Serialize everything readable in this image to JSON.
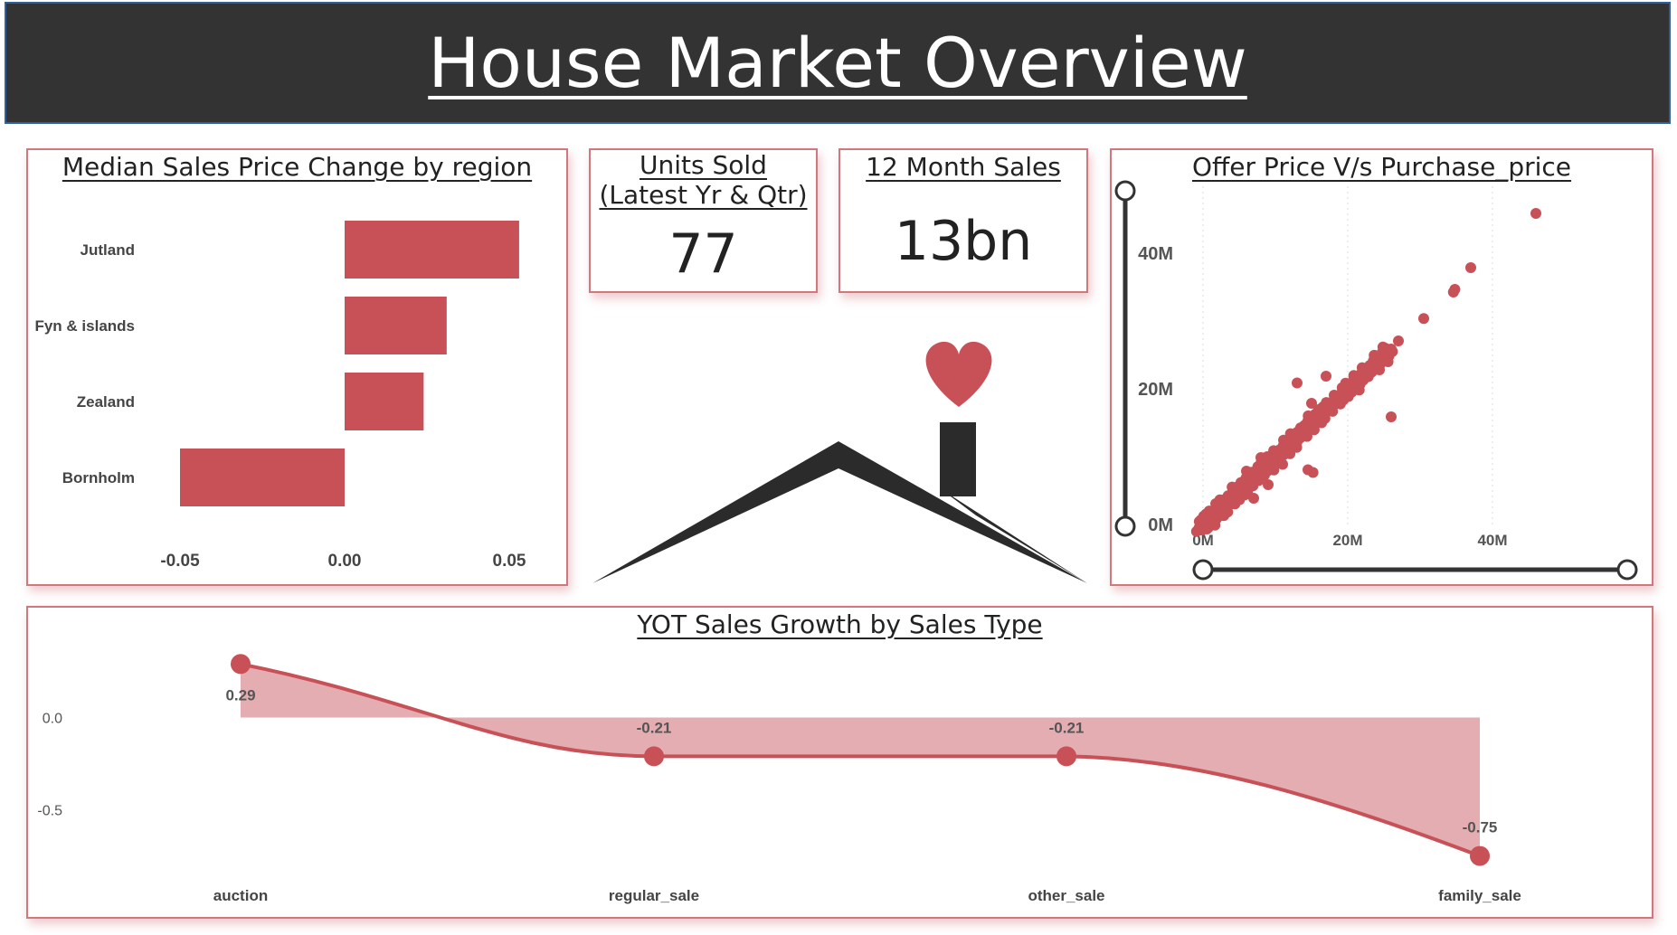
{
  "header": {
    "title": "House Market Overview"
  },
  "colors": {
    "accent": "#c85158",
    "header_bg": "#333333",
    "area_fill": "#e3adb1",
    "slider": "#333333"
  },
  "icons": {
    "logo": "house-with-heart-icon"
  },
  "kpis": [
    {
      "title": "Units Sold (Latest Yr & Qtr)",
      "value": "77"
    },
    {
      "title": "12 Month Sales",
      "value": "13bn"
    }
  ],
  "chart_data": [
    {
      "type": "bar",
      "orientation": "horizontal",
      "title": "Median Sales Price Change by region",
      "categories": [
        "Jutland",
        "Fyn & islands",
        "Zealand",
        "Bornholm"
      ],
      "values": [
        0.053,
        0.031,
        0.024,
        -0.05
      ],
      "xlim": [
        -0.05,
        0.05
      ],
      "xticks": [
        "-0.05",
        "0.00",
        "0.05"
      ],
      "grid": false
    },
    {
      "type": "scatter",
      "title": "Offer Price V/s Purchase_price",
      "xticks": [
        "0M",
        "20M",
        "40M"
      ],
      "yticks": [
        "0M",
        "20M",
        "40M"
      ],
      "xlim": [
        0,
        50000000
      ],
      "ylim": [
        0,
        50000000
      ],
      "grid": true,
      "points_sample": [
        [
          46000000,
          46000000
        ],
        [
          37000000,
          38000000
        ],
        [
          34800000,
          34800000
        ],
        [
          34600000,
          34400000
        ],
        [
          30500000,
          30500000
        ],
        [
          27000000,
          27200000
        ],
        [
          26000000,
          26000000
        ],
        [
          25000000,
          25000000
        ],
        [
          24000000,
          24000000
        ],
        [
          23000000,
          23000000
        ],
        [
          22000000,
          22000000
        ],
        [
          21000000,
          21000000
        ],
        [
          20000000,
          20000000
        ],
        [
          19000000,
          19000000
        ],
        [
          18000000,
          18000000
        ],
        [
          17000000,
          17000000
        ],
        [
          16000000,
          16000000
        ],
        [
          15000000,
          15000000
        ],
        [
          14000000,
          14000000
        ],
        [
          13000000,
          13000000
        ],
        [
          12000000,
          12000000
        ],
        [
          11000000,
          11000000
        ],
        [
          10000000,
          10000000
        ],
        [
          9000000,
          9000000
        ],
        [
          8000000,
          8000000
        ],
        [
          7000000,
          7000000
        ],
        [
          6000000,
          6000000
        ],
        [
          5000000,
          5000000
        ],
        [
          4000000,
          4000000
        ],
        [
          3000000,
          3000000
        ],
        [
          2000000,
          2000000
        ],
        [
          1000000,
          1000000
        ],
        [
          500000,
          500000
        ],
        [
          13000000,
          21000000
        ],
        [
          17000000,
          22000000
        ],
        [
          15000000,
          18000000
        ],
        [
          26000000,
          16000000
        ],
        [
          14500000,
          8200000
        ],
        [
          15200000,
          7800000
        ],
        [
          7000000,
          4000000
        ],
        [
          9000000,
          6000000
        ],
        [
          11000000,
          9000000
        ],
        [
          8000000,
          10000000
        ],
        [
          6000000,
          8000000
        ]
      ]
    },
    {
      "type": "area",
      "title": "YOT Sales Growth by Sales Type",
      "categories": [
        "auction",
        "regular_sale",
        "other_sale",
        "family_sale"
      ],
      "values": [
        0.29,
        -0.21,
        -0.21,
        -0.75
      ],
      "labels": [
        "0.29",
        "-0.21",
        "-0.21",
        "-0.75"
      ],
      "yticks": [
        "0.0",
        "-0.5"
      ],
      "ylim": [
        -0.85,
        0.36
      ],
      "grid": false
    }
  ]
}
